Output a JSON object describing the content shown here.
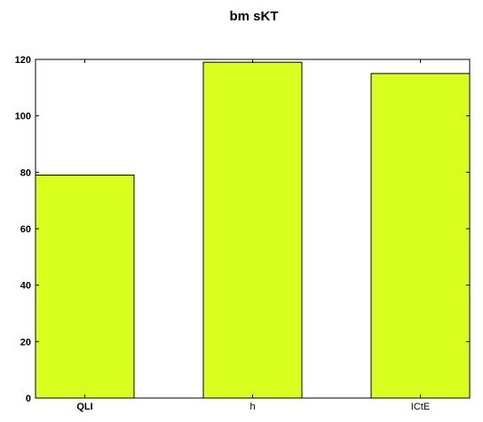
{
  "chart_data": {
    "type": "bar",
    "title": "bm sKT",
    "xlabel": "",
    "ylabel": "",
    "categories": [
      "QLI",
      "h",
      "ICtE"
    ],
    "values": [
      79,
      119,
      115
    ],
    "ylim": [
      0,
      120
    ],
    "yticks": [
      0,
      20,
      40,
      60,
      80,
      100,
      120
    ],
    "grid": false,
    "legend": "none",
    "bar_color": "#d9ff1e",
    "edge_color": "#000000",
    "bold_category_labels": [
      "QLI"
    ]
  }
}
